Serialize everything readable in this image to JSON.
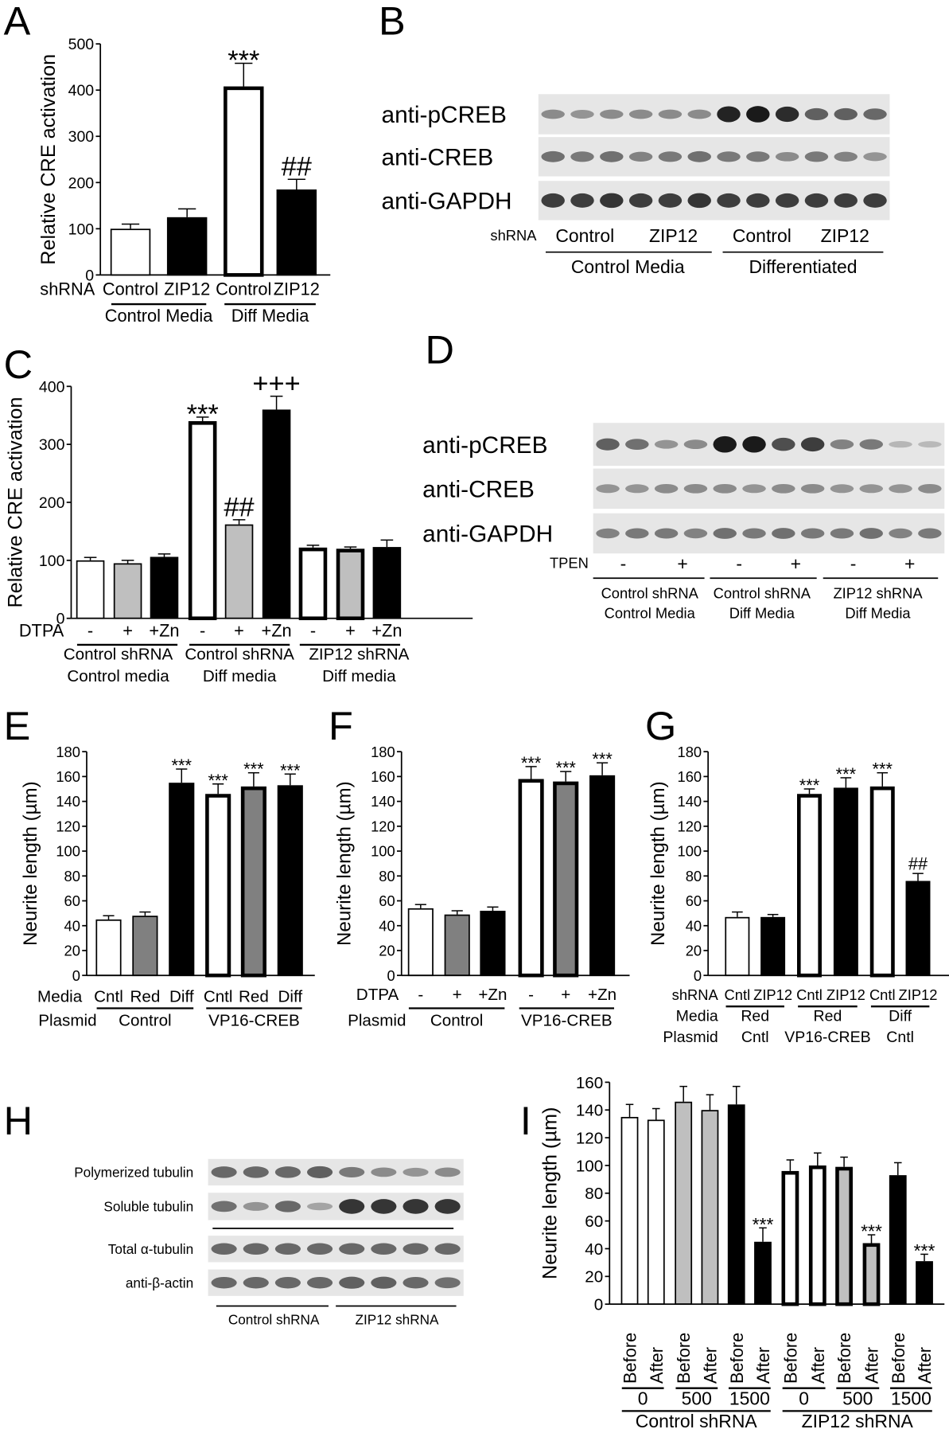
{
  "panel_letters": [
    "A",
    "B",
    "C",
    "D",
    "E",
    "F",
    "G",
    "H",
    "I"
  ],
  "colors": {
    "white": "#ffffff",
    "light-gray": "#bfbfbf",
    "gray": "#808080",
    "black": "#000000",
    "blot-bg": "#e6e6e6",
    "band": "#1a1a1a"
  },
  "chart_data": [
    {
      "panel": "A",
      "type": "bar",
      "ylabel": "Relative CRE activation",
      "ylim": [
        0,
        500
      ],
      "yticks": [
        0,
        100,
        200,
        300,
        400,
        500
      ],
      "bars": [
        {
          "value": 100,
          "error": 10,
          "fill": "white",
          "outline": "thin"
        },
        {
          "value": 125,
          "error": 18,
          "fill": "black",
          "outline": "thin"
        },
        {
          "value": 408,
          "error": 50,
          "fill": "white",
          "outline": "thick"
        },
        {
          "value": 185,
          "error": 22,
          "fill": "black",
          "outline": "thin"
        }
      ],
      "annotations": [
        {
          "bar": 2,
          "text": "***"
        },
        {
          "bar": 3,
          "text": "##"
        }
      ],
      "x_rows": [
        {
          "label": "shRNA",
          "items": [
            "Control",
            "ZIP12",
            "Control",
            "ZIP12"
          ]
        }
      ],
      "group_rows": [
        {
          "label": "",
          "groups": [
            {
              "lines": [
                "Control Media"
              ],
              "bars": [
                0,
                1
              ]
            },
            {
              "lines": [
                "Diff Media"
              ],
              "bars": [
                2,
                3
              ]
            }
          ]
        }
      ]
    },
    {
      "panel": "C",
      "type": "bar",
      "ylabel": "Relative CRE activation",
      "ylim": [
        0,
        400
      ],
      "yticks": [
        0,
        100,
        200,
        300,
        400
      ],
      "bars": [
        {
          "value": 100,
          "error": 5,
          "fill": "white",
          "outline": "thin"
        },
        {
          "value": 95,
          "error": 5,
          "fill": "light-gray",
          "outline": "thin"
        },
        {
          "value": 106,
          "error": 5,
          "fill": "black",
          "outline": "thin"
        },
        {
          "value": 340,
          "error": 7,
          "fill": "white",
          "outline": "thick"
        },
        {
          "value": 162,
          "error": 8,
          "fill": "light-gray",
          "outline": "thin"
        },
        {
          "value": 360,
          "error": 23,
          "fill": "black",
          "outline": "thin"
        },
        {
          "value": 122,
          "error": 4,
          "fill": "white",
          "outline": "thick"
        },
        {
          "value": 120,
          "error": 3,
          "fill": "light-gray",
          "outline": "thick"
        },
        {
          "value": 123,
          "error": 12,
          "fill": "black",
          "outline": "thin"
        }
      ],
      "annotations": [
        {
          "bar": 3,
          "text": "***"
        },
        {
          "bar": 4,
          "text": "##"
        },
        {
          "bar": 5,
          "text": "+++"
        }
      ],
      "x_rows": [
        {
          "label": "DTPA",
          "items": [
            "-",
            "+",
            "+Zn",
            "-",
            "+",
            "+Zn",
            "-",
            "+",
            "+Zn"
          ]
        }
      ],
      "group_rows": [
        {
          "label": "",
          "groups": [
            {
              "lines": [
                "Control shRNA",
                "Control media"
              ],
              "bars": [
                0,
                2
              ]
            },
            {
              "lines": [
                "Control shRNA",
                "Diff media"
              ],
              "bars": [
                3,
                5
              ]
            },
            {
              "lines": [
                "ZIP12 shRNA",
                "Diff media"
              ],
              "bars": [
                6,
                8
              ]
            }
          ]
        }
      ]
    },
    {
      "panel": "E",
      "type": "bar",
      "ylabel": "Neurite length (µm)",
      "ylim": [
        0,
        180
      ],
      "yticks": [
        0,
        20,
        40,
        60,
        80,
        100,
        120,
        140,
        160,
        180
      ],
      "bars": [
        {
          "value": 45,
          "error": 3,
          "fill": "white",
          "outline": "thin"
        },
        {
          "value": 48,
          "error": 3,
          "fill": "gray",
          "outline": "thin"
        },
        {
          "value": 155,
          "error": 11,
          "fill": "black",
          "outline": "thin"
        },
        {
          "value": 146,
          "error": 8,
          "fill": "white",
          "outline": "thick"
        },
        {
          "value": 152,
          "error": 11,
          "fill": "gray",
          "outline": "thick"
        },
        {
          "value": 153,
          "error": 9,
          "fill": "black",
          "outline": "thin"
        }
      ],
      "annotations": [
        {
          "bar": 2,
          "text": "***"
        },
        {
          "bar": 3,
          "text": "***"
        },
        {
          "bar": 4,
          "text": "***"
        },
        {
          "bar": 5,
          "text": "***"
        }
      ],
      "x_rows": [
        {
          "label": "Media",
          "items": [
            "Cntl",
            "Red",
            "Diff",
            "Cntl",
            "Red",
            "Diff"
          ]
        }
      ],
      "group_rows": [
        {
          "label": "Plasmid",
          "groups": [
            {
              "lines": [
                "Control"
              ],
              "bars": [
                0,
                2
              ]
            },
            {
              "lines": [
                "VP16-CREB"
              ],
              "bars": [
                3,
                5
              ]
            }
          ]
        }
      ]
    },
    {
      "panel": "F",
      "type": "bar",
      "ylabel": "Neurite length (µm)",
      "ylim": [
        0,
        180
      ],
      "yticks": [
        0,
        20,
        40,
        60,
        80,
        100,
        120,
        140,
        160,
        180
      ],
      "bars": [
        {
          "value": 54,
          "error": 3,
          "fill": "white",
          "outline": "thin"
        },
        {
          "value": 49,
          "error": 3,
          "fill": "gray",
          "outline": "thin"
        },
        {
          "value": 52,
          "error": 3,
          "fill": "black",
          "outline": "thin"
        },
        {
          "value": 158,
          "error": 10,
          "fill": "white",
          "outline": "thick"
        },
        {
          "value": 156,
          "error": 8,
          "fill": "gray",
          "outline": "thick"
        },
        {
          "value": 161,
          "error": 10,
          "fill": "black",
          "outline": "thin"
        }
      ],
      "annotations": [
        {
          "bar": 3,
          "text": "***"
        },
        {
          "bar": 4,
          "text": "***"
        },
        {
          "bar": 5,
          "text": "***"
        }
      ],
      "x_rows": [
        {
          "label": "DTPA",
          "items": [
            "-",
            "+",
            "+Zn",
            "-",
            "+",
            "+Zn"
          ]
        }
      ],
      "group_rows": [
        {
          "label": "Plasmid",
          "groups": [
            {
              "lines": [
                "Control"
              ],
              "bars": [
                0,
                2
              ]
            },
            {
              "lines": [
                "VP16-CREB"
              ],
              "bars": [
                3,
                5
              ]
            }
          ]
        }
      ]
    },
    {
      "panel": "G",
      "type": "bar",
      "ylabel": "Neurite length (µm)",
      "ylim": [
        0,
        180
      ],
      "yticks": [
        0,
        20,
        40,
        60,
        80,
        100,
        120,
        140,
        160,
        180
      ],
      "bars": [
        {
          "value": 47,
          "error": 4,
          "fill": "white",
          "outline": "thin"
        },
        {
          "value": 47,
          "error": 2,
          "fill": "black",
          "outline": "thin"
        },
        {
          "value": 146,
          "error": 4,
          "fill": "white",
          "outline": "thick"
        },
        {
          "value": 151,
          "error": 8,
          "fill": "black",
          "outline": "thin"
        },
        {
          "value": 152,
          "error": 11,
          "fill": "white",
          "outline": "thick"
        },
        {
          "value": 76,
          "error": 6,
          "fill": "black",
          "outline": "thin"
        }
      ],
      "annotations": [
        {
          "bar": 2,
          "text": "***"
        },
        {
          "bar": 3,
          "text": "***"
        },
        {
          "bar": 4,
          "text": "***"
        },
        {
          "bar": 5,
          "text": "##"
        }
      ],
      "x_rows": [
        {
          "label": "shRNA",
          "items": [
            "Cntl",
            "ZIP12",
            "Cntl",
            "ZIP12",
            "Cntl",
            "ZIP12"
          ]
        }
      ],
      "group_rows": [
        {
          "label": "Media",
          "groups": [
            {
              "lines": [
                "Red"
              ],
              "bars": [
                0,
                1
              ]
            },
            {
              "lines": [
                "Red"
              ],
              "bars": [
                2,
                3
              ]
            },
            {
              "lines": [
                "Diff"
              ],
              "bars": [
                4,
                5
              ]
            }
          ]
        },
        {
          "label": "Plasmid",
          "groups": [
            {
              "lines": [
                "Cntl"
              ],
              "bars": [
                0,
                1
              ]
            },
            {
              "lines": [
                "VP16-CREB"
              ],
              "bars": [
                2,
                3
              ]
            },
            {
              "lines": [
                "Cntl"
              ],
              "bars": [
                4,
                5
              ]
            }
          ]
        }
      ]
    },
    {
      "panel": "I",
      "type": "bar",
      "ylabel": "Neurite length (µm)",
      "ylim": [
        0,
        160
      ],
      "yticks": [
        0,
        20,
        40,
        60,
        80,
        100,
        120,
        140,
        160
      ],
      "bars": [
        {
          "value": 135,
          "error": 9,
          "fill": "white",
          "outline": "thin"
        },
        {
          "value": 133,
          "error": 8,
          "fill": "white",
          "outline": "thin"
        },
        {
          "value": 146,
          "error": 11,
          "fill": "light-gray",
          "outline": "thin"
        },
        {
          "value": 140,
          "error": 11,
          "fill": "light-gray",
          "outline": "thin"
        },
        {
          "value": 144,
          "error": 13,
          "fill": "black",
          "outline": "thin"
        },
        {
          "value": 45,
          "error": 10,
          "fill": "black",
          "outline": "thin"
        },
        {
          "value": 96,
          "error": 8,
          "fill": "white",
          "outline": "thick"
        },
        {
          "value": 100,
          "error": 9,
          "fill": "white",
          "outline": "thick"
        },
        {
          "value": 99,
          "error": 7,
          "fill": "light-gray",
          "outline": "thick"
        },
        {
          "value": 44,
          "error": 6,
          "fill": "light-gray",
          "outline": "thick"
        },
        {
          "value": 93,
          "error": 9,
          "fill": "black",
          "outline": "thin"
        },
        {
          "value": 31,
          "error": 5,
          "fill": "black",
          "outline": "thin"
        }
      ],
      "annotations": [
        {
          "bar": 5,
          "text": "***"
        },
        {
          "bar": 9,
          "text": "***"
        },
        {
          "bar": 11,
          "text": "***"
        }
      ],
      "x_rows": [
        {
          "label": "",
          "rotated": true,
          "items": [
            "Before",
            "After",
            "Before",
            "After",
            "Before",
            "After",
            "Before",
            "After",
            "Before",
            "After",
            "Before",
            "After"
          ]
        }
      ],
      "group_rows": [
        {
          "label": "",
          "groups": [
            {
              "lines": [
                "0"
              ],
              "bars": [
                0,
                1
              ]
            },
            {
              "lines": [
                "500"
              ],
              "bars": [
                2,
                3
              ]
            },
            {
              "lines": [
                "1500"
              ],
              "bars": [
                4,
                5
              ]
            },
            {
              "lines": [
                "0"
              ],
              "bars": [
                6,
                7
              ]
            },
            {
              "lines": [
                "500"
              ],
              "bars": [
                8,
                9
              ]
            },
            {
              "lines": [
                "1500"
              ],
              "bars": [
                10,
                11
              ]
            }
          ]
        },
        {
          "label": "",
          "groups": [
            {
              "lines": [
                "Control shRNA"
              ],
              "bars": [
                0,
                5
              ]
            },
            {
              "lines": [
                "ZIP12 shRNA"
              ],
              "bars": [
                6,
                11
              ]
            }
          ]
        }
      ]
    }
  ],
  "blots": [
    {
      "panel": "B",
      "rows": [
        {
          "label": "anti-pCREB",
          "bands": [
            0.35,
            0.3,
            0.35,
            0.35,
            0.35,
            0.35,
            0.95,
            1,
            0.9,
            0.6,
            0.6,
            0.55
          ]
        },
        {
          "label": "anti-CREB",
          "bands": [
            0.5,
            0.45,
            0.5,
            0.4,
            0.45,
            0.5,
            0.45,
            0.45,
            0.35,
            0.45,
            0.4,
            0.3
          ]
        },
        {
          "label": "anti-GAPDH",
          "bands": [
            0.8,
            0.8,
            0.85,
            0.8,
            0.8,
            0.85,
            0.8,
            0.8,
            0.8,
            0.8,
            0.8,
            0.8
          ]
        }
      ],
      "condition_row": {
        "label": "shRNA",
        "items": [
          "Control",
          "ZIP12",
          "Control",
          "ZIP12"
        ]
      },
      "groups": [
        "Control Media",
        "Differentiated"
      ]
    },
    {
      "panel": "D",
      "rows": [
        {
          "label": "anti-pCREB",
          "bands": [
            0.6,
            0.5,
            0.3,
            0.35,
            1,
            1,
            0.7,
            0.8,
            0.4,
            0.45,
            0.1,
            0.08
          ]
        },
        {
          "label": "anti-CREB",
          "bands": [
            0.3,
            0.3,
            0.35,
            0.35,
            0.35,
            0.3,
            0.35,
            0.35,
            0.3,
            0.3,
            0.3,
            0.35
          ]
        },
        {
          "label": "anti-GAPDH",
          "bands": [
            0.4,
            0.45,
            0.45,
            0.4,
            0.5,
            0.45,
            0.5,
            0.45,
            0.45,
            0.5,
            0.4,
            0.45
          ]
        }
      ],
      "condition_row": {
        "label": "TPEN",
        "items": [
          "-",
          "+",
          "-",
          "+",
          "-",
          "+"
        ]
      },
      "groups": [
        [
          "Control shRNA",
          "Control Media"
        ],
        [
          "Control shRNA",
          "Diff Media"
        ],
        [
          "ZIP12 shRNA",
          "Diff Media"
        ]
      ]
    },
    {
      "panel": "H",
      "rows": [
        {
          "label": "Polymerized tubulin",
          "bands": [
            0.55,
            0.55,
            0.55,
            0.6,
            0.45,
            0.35,
            0.3,
            0.35
          ]
        },
        {
          "label": "Soluble tubulin",
          "bands": [
            0.5,
            0.3,
            0.55,
            0.2,
            0.85,
            0.85,
            0.85,
            0.85
          ]
        },
        {
          "label": "Total α-tubulin",
          "bands": [
            0.55,
            0.55,
            0.55,
            0.55,
            0.55,
            0.55,
            0.55,
            0.55
          ]
        },
        {
          "label": "anti-β-actin",
          "bands": [
            0.55,
            0.55,
            0.55,
            0.55,
            0.6,
            0.6,
            0.55,
            0.5
          ]
        }
      ],
      "groups": [
        "Control shRNA",
        "ZIP12 shRNA"
      ]
    }
  ]
}
